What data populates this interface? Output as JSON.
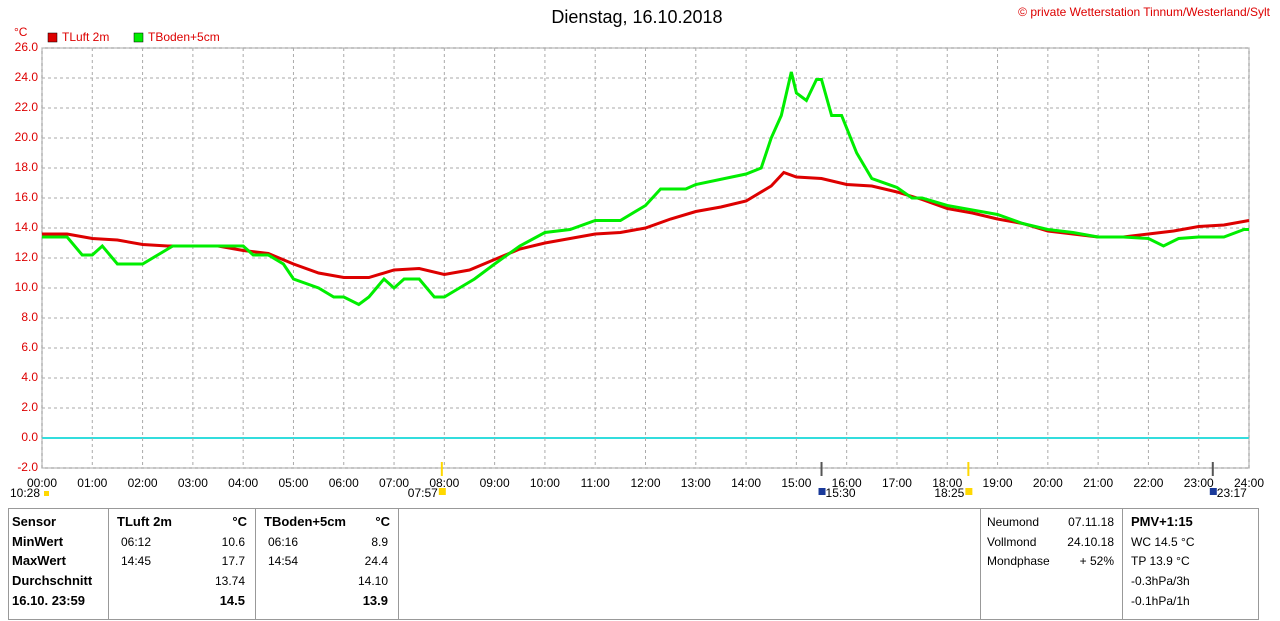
{
  "chart_data": {
    "type": "line",
    "title": "Dienstag, 16.10.2018",
    "copyright": "© private Wetterstation Tinnum/Westerland/Sylt",
    "y_unit": "°C",
    "xlim": [
      0,
      24
    ],
    "xticks": [
      {
        "value": 0,
        "label": "00:00"
      },
      {
        "value": 1,
        "label": "01:00"
      },
      {
        "value": 2,
        "label": "02:00"
      },
      {
        "value": 3,
        "label": "03:00"
      },
      {
        "value": 4,
        "label": "04:00"
      },
      {
        "value": 5,
        "label": "05:00"
      },
      {
        "value": 6,
        "label": "06:00"
      },
      {
        "value": 7,
        "label": "07:00"
      },
      {
        "value": 8,
        "label": "08:00"
      },
      {
        "value": 9,
        "label": "09:00"
      },
      {
        "value": 10,
        "label": "10:00"
      },
      {
        "value": 11,
        "label": "11:00"
      },
      {
        "value": 12,
        "label": "12:00"
      },
      {
        "value": 13,
        "label": "13:00"
      },
      {
        "value": 14,
        "label": "14:00"
      },
      {
        "value": 15,
        "label": "15:00"
      },
      {
        "value": 16,
        "label": "16:00"
      },
      {
        "value": 17,
        "label": "17:00"
      },
      {
        "value": 18,
        "label": "18:00"
      },
      {
        "value": 19,
        "label": "19:00"
      },
      {
        "value": 20,
        "label": "20:00"
      },
      {
        "value": 21,
        "label": "21:00"
      },
      {
        "value": 22,
        "label": "22:00"
      },
      {
        "value": 23,
        "label": "23:00"
      },
      {
        "value": 24,
        "label": "24:00"
      }
    ],
    "ylim": [
      -2,
      26
    ],
    "yticks": [
      {
        "value": -2,
        "label": "-2.0"
      },
      {
        "value": 0,
        "label": "0.0"
      },
      {
        "value": 2,
        "label": "2.0"
      },
      {
        "value": 4,
        "label": "4.0"
      },
      {
        "value": 6,
        "label": "6.0"
      },
      {
        "value": 8,
        "label": "8.0"
      },
      {
        "value": 10,
        "label": "10.0"
      },
      {
        "value": 12,
        "label": "12.0"
      },
      {
        "value": 14,
        "label": "14.0"
      },
      {
        "value": 16,
        "label": "16.0"
      },
      {
        "value": 18,
        "label": "18.0"
      },
      {
        "value": 20,
        "label": "20.0"
      },
      {
        "value": 22,
        "label": "22.0"
      },
      {
        "value": 24,
        "label": "24.0"
      },
      {
        "value": 26,
        "label": "26.0"
      }
    ],
    "grid": true,
    "zero_line_color": "#33dddd",
    "series": [
      {
        "name": "TLuft 2m",
        "color": "#dd0000",
        "x": [
          0,
          0.5,
          1,
          1.5,
          2,
          2.5,
          3,
          3.5,
          4,
          4.5,
          5,
          5.5,
          6,
          6.5,
          7,
          7.5,
          8,
          8.5,
          9,
          9.5,
          10,
          10.5,
          11,
          11.5,
          12,
          12.5,
          13,
          13.5,
          14,
          14.5,
          14.75,
          15,
          15.5,
          16,
          16.5,
          17,
          17.5,
          18,
          18.5,
          19,
          19.5,
          20,
          20.5,
          21,
          21.5,
          22,
          22.5,
          23,
          23.5,
          24
        ],
        "values": [
          13.6,
          13.6,
          13.3,
          13.2,
          12.9,
          12.8,
          12.8,
          12.8,
          12.5,
          12.3,
          11.6,
          11.0,
          10.7,
          10.7,
          11.2,
          11.3,
          10.9,
          11.2,
          11.9,
          12.6,
          13.0,
          13.3,
          13.6,
          13.7,
          14.0,
          14.6,
          15.1,
          15.4,
          15.8,
          16.8,
          17.7,
          17.4,
          17.3,
          16.9,
          16.8,
          16.4,
          15.9,
          15.3,
          15.0,
          14.6,
          14.3,
          13.8,
          13.6,
          13.4,
          13.4,
          13.6,
          13.8,
          14.1,
          14.2,
          14.5
        ]
      },
      {
        "name": "TBoden+5cm",
        "color": "#00ee00",
        "x": [
          0,
          0.5,
          0.8,
          1,
          1.2,
          1.5,
          2,
          2.3,
          2.6,
          3,
          4,
          4.2,
          4.5,
          4.8,
          5,
          5.5,
          5.8,
          6,
          6.3,
          6.5,
          6.8,
          7,
          7.2,
          7.5,
          7.8,
          8,
          8.3,
          8.6,
          9,
          9.5,
          10,
          10.5,
          11,
          11.5,
          12,
          12.3,
          12.8,
          13,
          14,
          14.3,
          14.5,
          14.7,
          14.9,
          15,
          15.2,
          15.4,
          15.5,
          15.7,
          15.9,
          16.2,
          16.5,
          17,
          17.3,
          17.5,
          18,
          18.5,
          19,
          19.5,
          20,
          20.5,
          21,
          21.5,
          22,
          22.3,
          22.6,
          23,
          23.5,
          23.9,
          24
        ],
        "values": [
          13.4,
          13.4,
          12.2,
          12.2,
          12.8,
          11.6,
          11.6,
          12.2,
          12.8,
          12.8,
          12.8,
          12.2,
          12.2,
          11.6,
          10.6,
          10.0,
          9.4,
          9.4,
          8.9,
          9.4,
          10.6,
          10.0,
          10.6,
          10.6,
          9.4,
          9.4,
          10.0,
          10.6,
          11.6,
          12.8,
          13.7,
          13.9,
          14.5,
          14.5,
          15.5,
          16.6,
          16.6,
          16.9,
          17.6,
          18.0,
          20.0,
          21.5,
          24.4,
          23.0,
          22.5,
          23.9,
          23.9,
          21.5,
          21.5,
          19.0,
          17.3,
          16.7,
          16.0,
          16.0,
          15.5,
          15.2,
          14.9,
          14.3,
          13.9,
          13.7,
          13.4,
          13.4,
          13.3,
          12.8,
          13.3,
          13.4,
          13.4,
          13.9,
          13.9
        ]
      }
    ],
    "annotations": [
      {
        "text": "10:28",
        "color": "#ffd800"
      },
      {
        "text": "07:57",
        "x": 7.95,
        "color": "#ffd800"
      },
      {
        "text": "15:30",
        "x": 15.5,
        "color": "#1a3a9a"
      },
      {
        "text": "18:25",
        "x": 18.42,
        "color": "#ffd800"
      },
      {
        "text": "23:17",
        "x": 23.28,
        "color": "#1a3a9a"
      }
    ]
  },
  "stats": {
    "sensor": [
      "Sensor",
      "MinWert",
      "MaxWert",
      "Durchschnitt",
      "16.10. 23:59"
    ],
    "tluft": {
      "header": [
        "TLuft 2m",
        "°C"
      ],
      "rows": [
        [
          "06:12",
          "10.6"
        ],
        [
          "14:45",
          "17.7"
        ],
        [
          "",
          "13.74"
        ],
        [
          "",
          "14.5"
        ]
      ]
    },
    "tboden": {
      "header": [
        "TBoden+5cm",
        "°C"
      ],
      "rows": [
        [
          "06:16",
          "8.9"
        ],
        [
          "14:54",
          "24.4"
        ],
        [
          "",
          "14.10"
        ],
        [
          "",
          "13.9"
        ]
      ]
    },
    "moon": [
      [
        "Neumond",
        "07.11.18"
      ],
      [
        "Vollmond",
        "24.10.18"
      ],
      [
        "Mondphase",
        "+ 52%"
      ]
    ],
    "pmv": [
      "PMV+1:15",
      "WC 14.5 °C",
      "TP 13.9 °C",
      "-0.3hPa/3h",
      "-0.1hPa/1h"
    ]
  }
}
